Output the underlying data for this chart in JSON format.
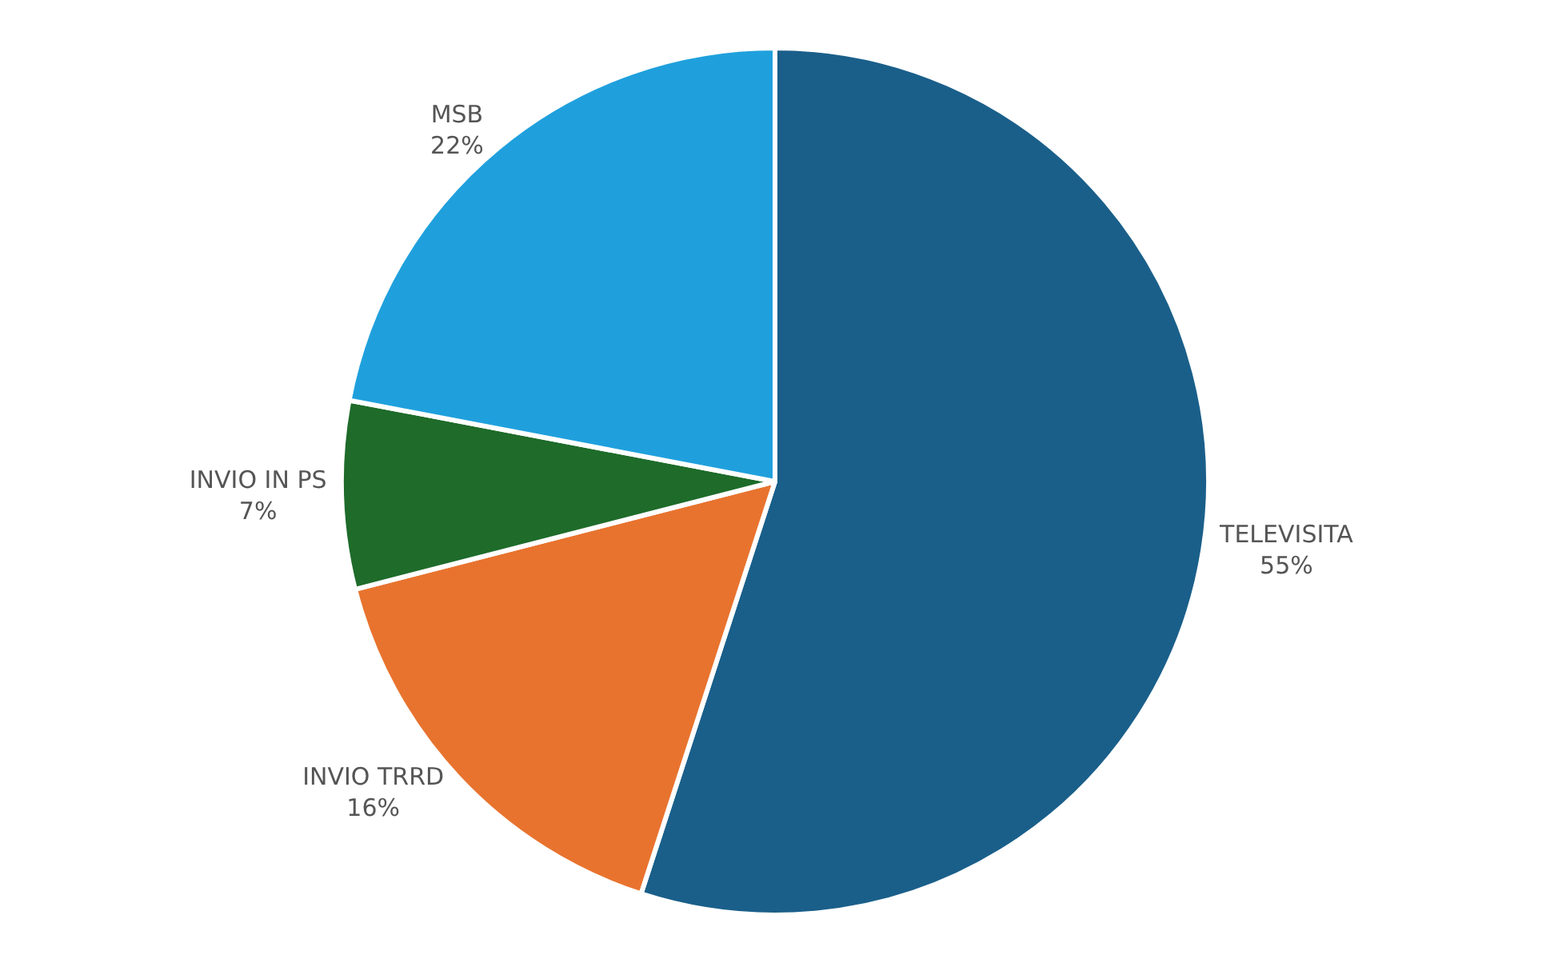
{
  "chart_data": {
    "type": "pie",
    "categories": [
      "TELEVISITA",
      "INVIO TRRD",
      "INVIO IN PS",
      "MSB"
    ],
    "values": [
      55,
      16,
      7,
      22
    ],
    "value_labels": [
      "55%",
      "16%",
      "7%",
      "22%"
    ],
    "colors": [
      "#1a5f8a",
      "#e8732e",
      "#1e6b2a",
      "#1fa0dd"
    ],
    "legend": false
  }
}
